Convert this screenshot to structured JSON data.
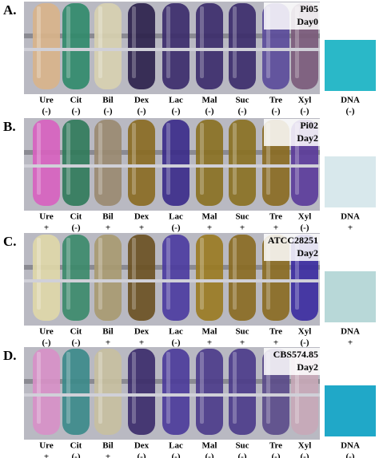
{
  "tests": [
    "Ure",
    "Cit",
    "Bil",
    "Dex",
    "Lac",
    "Mal",
    "Suc",
    "Tre",
    "Xyl"
  ],
  "dna_label": "DNA",
  "panels": [
    {
      "label": "A.",
      "strain": "Pi05",
      "day": "Day0",
      "results": [
        "(-)",
        "(-)",
        "(-)",
        "(-)",
        "(-)",
        "(-)",
        "(-)",
        "(-)",
        "(-)"
      ],
      "dna": "(-)"
    },
    {
      "label": "B.",
      "strain": "Pi02",
      "day": "Day2",
      "results": [
        "+",
        "(-)",
        "+",
        "+",
        "(-)",
        "+",
        "+",
        "+",
        "(-)"
      ],
      "dna": "+"
    },
    {
      "label": "C.",
      "strain": "ATCC28251",
      "day": "Day2",
      "results": [
        "(-)",
        "(-)",
        "+",
        "+",
        "(-)",
        "+",
        "+",
        "+",
        "(-)"
      ],
      "dna": "+"
    },
    {
      "label": "D.",
      "strain": "CBS574.85",
      "day": "Day2",
      "results": [
        "+",
        "(-)",
        "+",
        "(-)",
        "(-)",
        "(-)",
        "(-)",
        "(-)",
        "(-)"
      ],
      "dna": "(-)"
    }
  ]
}
